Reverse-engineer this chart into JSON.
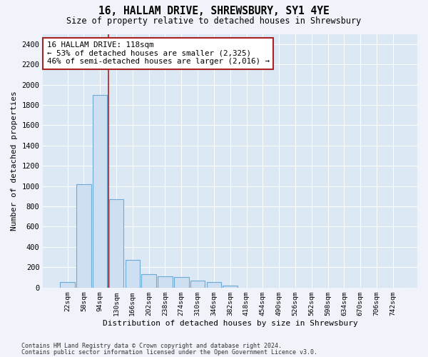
{
  "title1": "16, HALLAM DRIVE, SHREWSBURY, SY1 4YE",
  "title2": "Size of property relative to detached houses in Shrewsbury",
  "xlabel": "Distribution of detached houses by size in Shrewsbury",
  "ylabel": "Number of detached properties",
  "bar_labels": [
    "22sqm",
    "58sqm",
    "94sqm",
    "130sqm",
    "166sqm",
    "202sqm",
    "238sqm",
    "274sqm",
    "310sqm",
    "346sqm",
    "382sqm",
    "418sqm",
    "454sqm",
    "490sqm",
    "526sqm",
    "562sqm",
    "598sqm",
    "634sqm",
    "670sqm",
    "706sqm",
    "742sqm"
  ],
  "bar_values": [
    50,
    1020,
    1900,
    870,
    270,
    130,
    110,
    100,
    65,
    50,
    15,
    0,
    0,
    0,
    0,
    0,
    0,
    0,
    0,
    0,
    0
  ],
  "bar_color": "#cddff0",
  "bar_edge_color": "#6aaad4",
  "ylim": [
    0,
    2500
  ],
  "yticks": [
    0,
    200,
    400,
    600,
    800,
    1000,
    1200,
    1400,
    1600,
    1800,
    2000,
    2200,
    2400
  ],
  "property_bin_index": 2.5,
  "annotation_title": "16 HALLAM DRIVE: 118sqm",
  "annotation_line1": "← 53% of detached houses are smaller (2,325)",
  "annotation_line2": "46% of semi-detached houses are larger (2,016) →",
  "vline_color": "#aa2222",
  "annotation_box_color": "#ffffff",
  "annotation_box_edge": "#aa2222",
  "footer1": "Contains HM Land Registry data © Crown copyright and database right 2024.",
  "footer2": "Contains public sector information licensed under the Open Government Licence v3.0.",
  "bg_color": "#f0f4fa",
  "plot_bg_color": "#dce9f5",
  "title1_fontsize": 10.5,
  "title2_fontsize": 8.5
}
